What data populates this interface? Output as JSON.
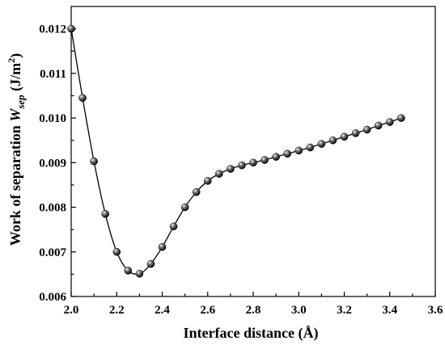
{
  "chart_data": {
    "type": "line",
    "title": "",
    "xlabel": "Interface distance (Å)",
    "ylabel_main": "Work of separation ",
    "ylabel_symbol": "W",
    "ylabel_subscript": "sep",
    "ylabel_unit_prefix": " (J/m",
    "ylabel_unit_sup": "2",
    "ylabel_unit_suffix": ")",
    "xlim": [
      2.0,
      3.6
    ],
    "ylim": [
      0.006,
      0.0125
    ],
    "xticks": [
      "2.0",
      "2.2",
      "2.4",
      "2.6",
      "2.8",
      "3.0",
      "3.2",
      "3.4",
      "3.6"
    ],
    "yticks": [
      "0.006",
      "0.007",
      "0.008",
      "0.009",
      "0.010",
      "0.011",
      "0.012"
    ],
    "grid": false,
    "marker": "sphere",
    "colors": {
      "line": "#000000",
      "marker": "#111111"
    },
    "series": [
      {
        "x": [
          2.0,
          2.05,
          2.1,
          2.15,
          2.2,
          2.25,
          2.3,
          2.35,
          2.4,
          2.45,
          2.5,
          2.55,
          2.6,
          2.65,
          2.7,
          2.75,
          2.8,
          2.85,
          2.9,
          2.95,
          3.0,
          3.05,
          3.1,
          3.15,
          3.2,
          3.25,
          3.3,
          3.35,
          3.4,
          3.45
        ],
        "y": [
          0.012,
          0.01045,
          0.00903,
          0.00785,
          0.007,
          0.00658,
          0.00651,
          0.00673,
          0.00711,
          0.00757,
          0.008,
          0.00834,
          0.00859,
          0.00875,
          0.00886,
          0.00894,
          0.009,
          0.00906,
          0.00913,
          0.0092,
          0.00927,
          0.00934,
          0.00942,
          0.0095,
          0.00958,
          0.00966,
          0.00974,
          0.00983,
          0.00991,
          0.01
        ]
      }
    ]
  }
}
